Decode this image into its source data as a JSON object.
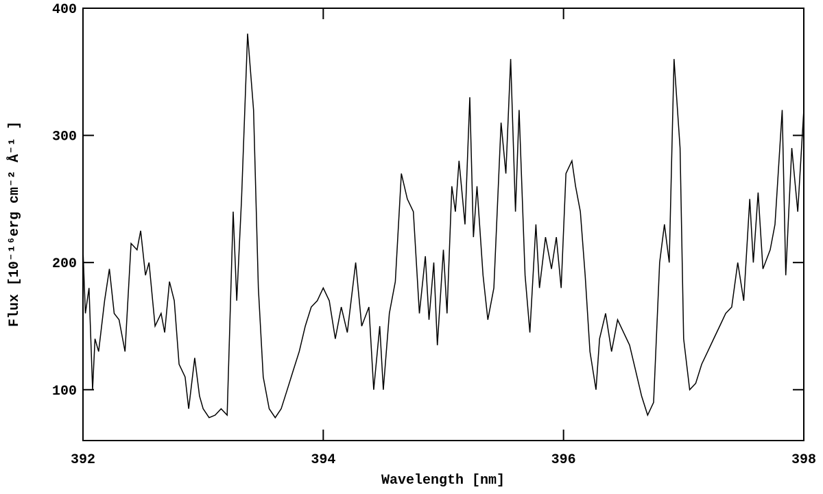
{
  "chart_data": {
    "type": "line",
    "xlabel": "Wavelength [nm]",
    "ylabel": "Flux [10⁻¹⁶erg cm⁻² Å⁻¹ ]",
    "xlim": [
      392,
      398
    ],
    "xticks": [
      392,
      394,
      396,
      398
    ],
    "ylim": [
      60,
      400
    ],
    "yticks": [
      100,
      200,
      300,
      400
    ],
    "series": [
      {
        "color": "#000000",
        "x": [
          392.0,
          392.02,
          392.05,
          392.08,
          392.1,
          392.13,
          392.18,
          392.22,
          392.26,
          392.3,
          392.35,
          392.4,
          392.45,
          392.48,
          392.52,
          392.55,
          392.6,
          392.65,
          392.68,
          392.72,
          392.76,
          392.8,
          392.85,
          392.88,
          392.93,
          392.97,
          393.0,
          393.05,
          393.1,
          393.15,
          393.2,
          393.25,
          393.28,
          393.32,
          393.37,
          393.42,
          393.46,
          393.5,
          393.55,
          393.6,
          393.65,
          393.7,
          393.75,
          393.8,
          393.85,
          393.9,
          393.95,
          394.0,
          394.05,
          394.1,
          394.15,
          394.2,
          394.27,
          394.32,
          394.38,
          394.42,
          394.47,
          394.5,
          394.55,
          394.6,
          394.65,
          394.7,
          394.75,
          394.8,
          394.85,
          394.88,
          394.92,
          394.95,
          395.0,
          395.03,
          395.07,
          395.1,
          395.13,
          395.18,
          395.22,
          395.25,
          395.28,
          395.33,
          395.37,
          395.42,
          395.48,
          395.52,
          395.56,
          395.6,
          395.63,
          395.68,
          395.72,
          395.77,
          395.8,
          395.85,
          395.9,
          395.94,
          395.98,
          396.02,
          396.07,
          396.1,
          396.14,
          396.18,
          396.22,
          396.27,
          396.3,
          396.35,
          396.4,
          396.45,
          396.5,
          396.55,
          396.6,
          396.65,
          396.7,
          396.75,
          396.8,
          396.84,
          396.88,
          396.92,
          396.97,
          397.0,
          397.05,
          397.1,
          397.15,
          397.2,
          397.25,
          397.3,
          397.35,
          397.4,
          397.45,
          397.5,
          397.55,
          397.58,
          397.62,
          397.66,
          397.72,
          397.76,
          397.82,
          397.85,
          397.9,
          397.95,
          398.0
        ],
        "values": [
          210,
          160,
          180,
          100,
          140,
          130,
          170,
          195,
          160,
          155,
          130,
          215,
          210,
          225,
          190,
          200,
          150,
          160,
          145,
          185,
          170,
          120,
          110,
          85,
          125,
          95,
          85,
          78,
          80,
          85,
          80,
          240,
          170,
          250,
          380,
          320,
          180,
          110,
          85,
          78,
          85,
          100,
          115,
          130,
          150,
          165,
          170,
          180,
          170,
          140,
          165,
          145,
          200,
          150,
          165,
          100,
          150,
          100,
          160,
          185,
          270,
          250,
          240,
          160,
          205,
          155,
          200,
          135,
          210,
          160,
          260,
          240,
          280,
          230,
          330,
          220,
          260,
          190,
          155,
          180,
          310,
          270,
          360,
          240,
          320,
          190,
          145,
          230,
          180,
          220,
          195,
          220,
          180,
          270,
          280,
          260,
          240,
          190,
          130,
          100,
          140,
          160,
          130,
          155,
          145,
          135,
          115,
          95,
          80,
          90,
          200,
          230,
          200,
          360,
          290,
          140,
          100,
          105,
          120,
          130,
          140,
          150,
          160,
          165,
          200,
          170,
          250,
          200,
          255,
          195,
          210,
          230,
          320,
          190,
          290,
          240,
          320
        ]
      }
    ]
  }
}
